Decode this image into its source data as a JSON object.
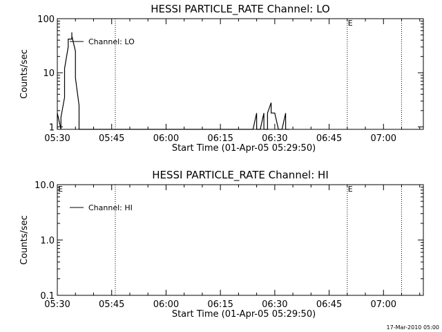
{
  "footer_date": "17-Mar-2010 05:00",
  "chart_data": [
    {
      "type": "line",
      "title": "HESSI PARTICLE_RATE Channel: LO",
      "xlabel": "Start Time (01-Apr-05 05:29:50)",
      "ylabel": "Counts/sec",
      "y_scale": "log",
      "xlim": [
        "05:30",
        "07:11"
      ],
      "ylim": [
        0.9,
        100
      ],
      "x_ticks": [
        "05:30",
        "05:45",
        "06:00",
        "06:15",
        "06:30",
        "06:45",
        "07:00"
      ],
      "y_ticks": [
        "1",
        "10",
        "100"
      ],
      "legend": "Channel: LO",
      "legend_placement": "top-left",
      "grid": false,
      "event_lines": [
        "05:46",
        "06:50",
        "07:05"
      ],
      "flags": [
        {
          "label": "E",
          "x": "06:50"
        }
      ],
      "series": [
        {
          "x": [
            "05:30",
            "05:30",
            "05:31",
            "05:31",
            "05:31",
            "05:32",
            "05:32",
            "05:33",
            "05:33",
            "05:34",
            "05:34",
            "05:34",
            "05:35",
            "05:35",
            "05:36",
            "05:36",
            "06:24",
            "06:25",
            "06:25",
            "06:26",
            "06:26",
            "06:27",
            "06:27",
            "06:28",
            "06:28",
            "06:29",
            "06:29",
            "06:30",
            "06:30",
            "06:31",
            "06:31",
            "06:32",
            "06:32",
            "06:33",
            "06:33",
            "06:34"
          ],
          "values": [
            0.9,
            1.8,
            0.9,
            0.9,
            1.5,
            3.5,
            12,
            30,
            42,
            42,
            56,
            48,
            25,
            8,
            2.5,
            0.9,
            0.9,
            1.8,
            0.9,
            0.9,
            0.9,
            1.8,
            0.9,
            0.9,
            1.8,
            2.8,
            1.8,
            1.8,
            1.8,
            0.9,
            0.9,
            0.9,
            0.9,
            1.8,
            0.9,
            0.9
          ]
        }
      ]
    },
    {
      "type": "line",
      "title": "HESSI PARTICLE_RATE Channel: HI",
      "xlabel": "Start Time (01-Apr-05 05:29:50)",
      "ylabel": "Counts/sec",
      "y_scale": "log",
      "xlim": [
        "05:30",
        "07:11"
      ],
      "ylim": [
        0.1,
        10
      ],
      "x_ticks": [
        "05:30",
        "05:45",
        "06:00",
        "06:15",
        "06:30",
        "06:45",
        "07:00"
      ],
      "y_ticks": [
        "0.1",
        "1.0",
        "10.0"
      ],
      "legend": "Channel: HI",
      "legend_placement": "top-left",
      "grid": false,
      "event_lines": [
        "05:46",
        "06:50",
        "07:05"
      ],
      "flags": [
        {
          "label": "E",
          "x": "05:30"
        },
        {
          "label": "E",
          "x": "06:50"
        }
      ],
      "series": [
        {
          "x": [],
          "values": []
        }
      ]
    }
  ]
}
